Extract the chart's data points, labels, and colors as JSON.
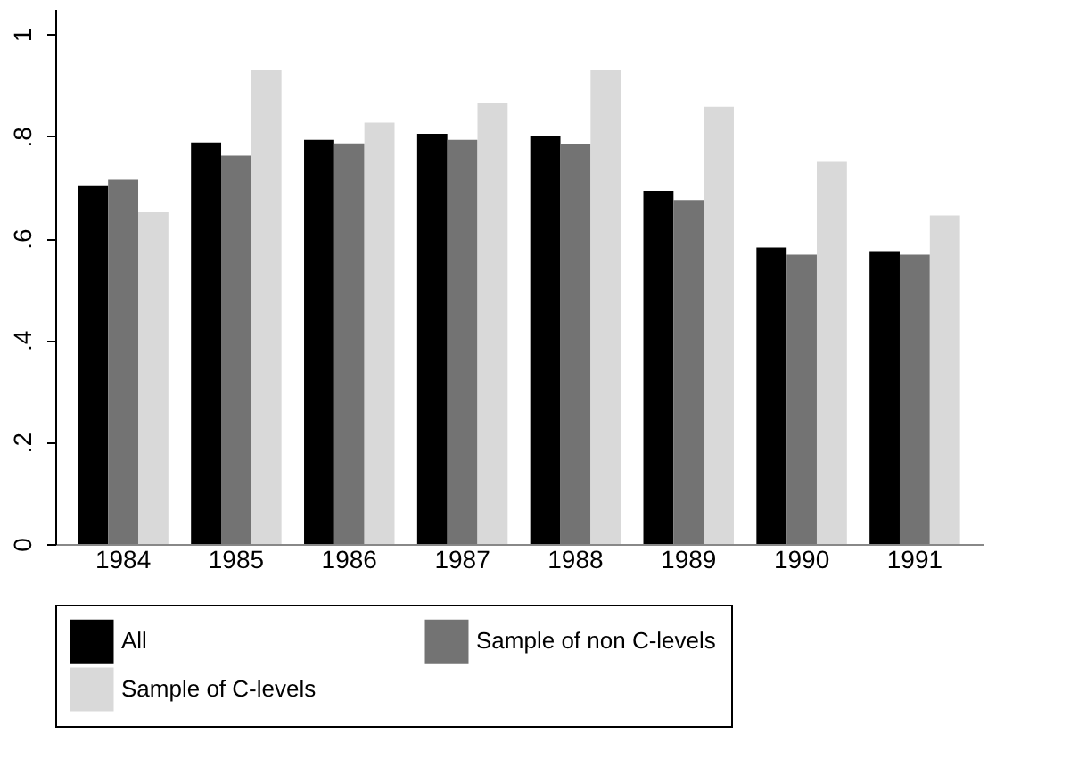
{
  "chart_data": {
    "type": "bar",
    "categories": [
      "1984",
      "1985",
      "1986",
      "1987",
      "1988",
      "1989",
      "1990",
      "1991"
    ],
    "series": [
      {
        "name": "All",
        "color": "#000000",
        "values": [
          0.704,
          0.788,
          0.793,
          0.805,
          0.801,
          0.693,
          0.582,
          0.575
        ]
      },
      {
        "name": "Sample of non C-levels",
        "color": "#737373",
        "values": [
          0.715,
          0.762,
          0.786,
          0.793,
          0.785,
          0.675,
          0.568,
          0.568
        ]
      },
      {
        "name": "Sample of C-levels",
        "color": "#d9d9d9",
        "values": [
          0.651,
          0.931,
          0.827,
          0.865,
          0.931,
          0.858,
          0.75,
          0.645
        ]
      }
    ],
    "ylim": [
      0,
      1.05
    ],
    "yticks": [
      0,
      {
        "value": 0.2,
        "label": ".2"
      },
      {
        "value": 0.4,
        "label": ".4"
      },
      {
        "value": 0.6,
        "label": ".6"
      },
      {
        "value": 0.8,
        "label": ".8"
      },
      1
    ],
    "grid": false,
    "legend": "bottom"
  }
}
